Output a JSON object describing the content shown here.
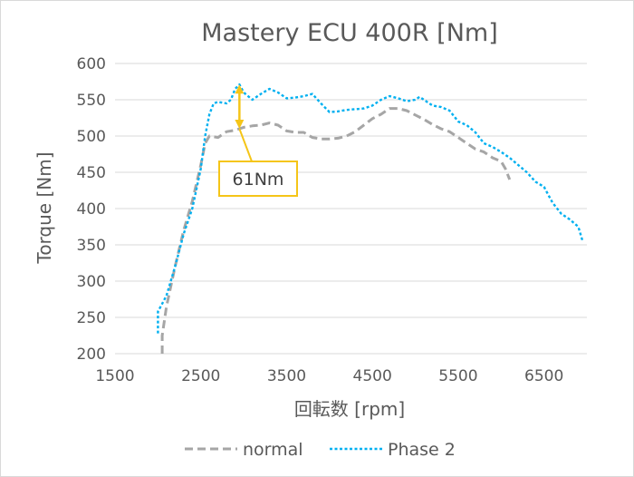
{
  "chart_data": {
    "type": "line",
    "title": "Mastery ECU 400R [Nm]",
    "xlabel": "回転数 [rpm]",
    "ylabel": "Torque [Nm]",
    "xlim": [
      1500,
      7000
    ],
    "ylim": [
      200,
      600
    ],
    "x_ticks": [
      1500,
      2500,
      3500,
      4500,
      5500,
      6500
    ],
    "y_ticks": [
      200,
      250,
      300,
      350,
      400,
      450,
      500,
      550,
      600
    ],
    "grid": "horizontal",
    "legend_position": "bottom",
    "series": [
      {
        "name": "normal",
        "color": "#a6a6a6",
        "style": "dashed",
        "points": [
          [
            2050,
            200
          ],
          [
            2050,
            225
          ],
          [
            2100,
            265
          ],
          [
            2200,
            320
          ],
          [
            2300,
            370
          ],
          [
            2400,
            410
          ],
          [
            2500,
            460
          ],
          [
            2550,
            490
          ],
          [
            2600,
            500
          ],
          [
            2700,
            498
          ],
          [
            2800,
            506
          ],
          [
            2900,
            508
          ],
          [
            3000,
            512
          ],
          [
            3100,
            514
          ],
          [
            3200,
            515
          ],
          [
            3300,
            518
          ],
          [
            3400,
            515
          ],
          [
            3500,
            507
          ],
          [
            3600,
            505
          ],
          [
            3700,
            505
          ],
          [
            3800,
            498
          ],
          [
            3900,
            496
          ],
          [
            4000,
            496
          ],
          [
            4100,
            497
          ],
          [
            4200,
            500
          ],
          [
            4300,
            506
          ],
          [
            4400,
            515
          ],
          [
            4500,
            524
          ],
          [
            4600,
            530
          ],
          [
            4700,
            538
          ],
          [
            4800,
            538
          ],
          [
            4900,
            535
          ],
          [
            5000,
            529
          ],
          [
            5100,
            523
          ],
          [
            5200,
            516
          ],
          [
            5300,
            510
          ],
          [
            5400,
            506
          ],
          [
            5500,
            498
          ],
          [
            5600,
            490
          ],
          [
            5700,
            482
          ],
          [
            5800,
            478
          ],
          [
            5900,
            470
          ],
          [
            6000,
            465
          ],
          [
            6050,
            455
          ],
          [
            6100,
            440
          ]
        ]
      },
      {
        "name": "Phase 2",
        "color": "#00b0f0",
        "style": "dotted",
        "points": [
          [
            2000,
            228
          ],
          [
            2000,
            258
          ],
          [
            2100,
            280
          ],
          [
            2200,
            320
          ],
          [
            2300,
            365
          ],
          [
            2400,
            400
          ],
          [
            2500,
            455
          ],
          [
            2550,
            500
          ],
          [
            2600,
            530
          ],
          [
            2650,
            545
          ],
          [
            2700,
            547
          ],
          [
            2800,
            545
          ],
          [
            2850,
            550
          ],
          [
            2900,
            565
          ],
          [
            2950,
            571
          ],
          [
            3000,
            560
          ],
          [
            3100,
            550
          ],
          [
            3200,
            558
          ],
          [
            3300,
            565
          ],
          [
            3400,
            560
          ],
          [
            3500,
            552
          ],
          [
            3600,
            553
          ],
          [
            3700,
            555
          ],
          [
            3800,
            558
          ],
          [
            3900,
            545
          ],
          [
            4000,
            533
          ],
          [
            4100,
            534
          ],
          [
            4200,
            536
          ],
          [
            4300,
            537
          ],
          [
            4400,
            538
          ],
          [
            4500,
            542
          ],
          [
            4600,
            550
          ],
          [
            4700,
            555
          ],
          [
            4800,
            552
          ],
          [
            4900,
            548
          ],
          [
            5000,
            550
          ],
          [
            5050,
            554
          ],
          [
            5100,
            550
          ],
          [
            5200,
            542
          ],
          [
            5300,
            540
          ],
          [
            5400,
            535
          ],
          [
            5500,
            520
          ],
          [
            5600,
            515
          ],
          [
            5700,
            505
          ],
          [
            5800,
            490
          ],
          [
            5900,
            485
          ],
          [
            6000,
            478
          ],
          [
            6100,
            470
          ],
          [
            6200,
            460
          ],
          [
            6300,
            450
          ],
          [
            6400,
            437
          ],
          [
            6500,
            430
          ],
          [
            6600,
            408
          ],
          [
            6700,
            393
          ],
          [
            6800,
            385
          ],
          [
            6900,
            375
          ],
          [
            6950,
            355
          ]
        ]
      }
    ],
    "annotation": {
      "text": "61Nm",
      "x": 2950,
      "y_from": 510,
      "y_to": 571,
      "color": "#f5c518"
    }
  }
}
